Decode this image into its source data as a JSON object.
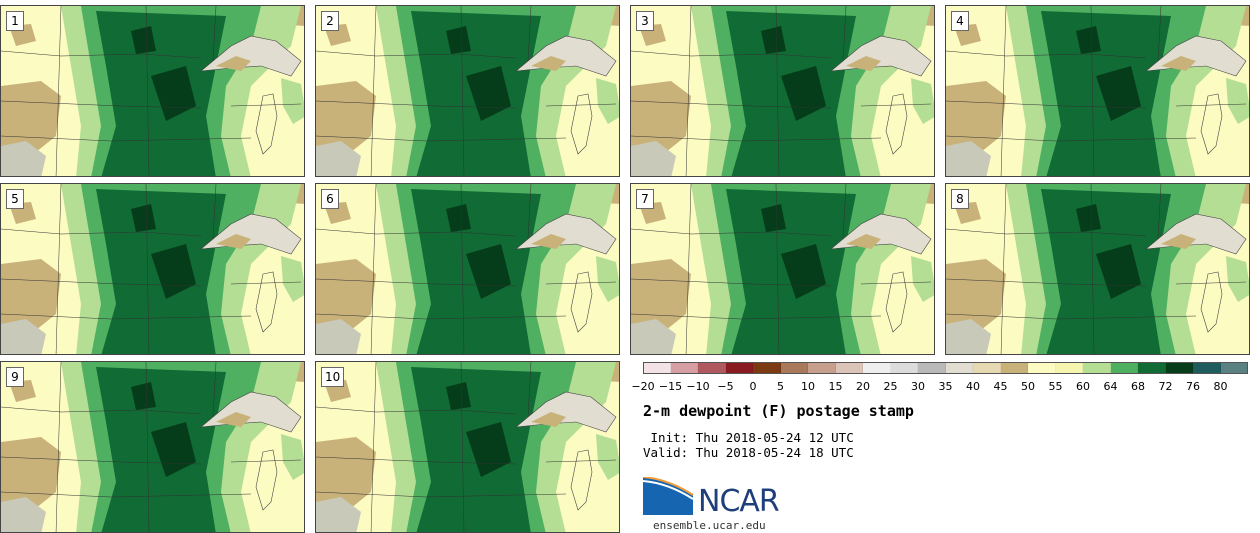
{
  "panels": [
    {
      "label": "1"
    },
    {
      "label": "2"
    },
    {
      "label": "3"
    },
    {
      "label": "4"
    },
    {
      "label": "5"
    },
    {
      "label": "6"
    },
    {
      "label": "7"
    },
    {
      "label": "8"
    },
    {
      "label": "9"
    },
    {
      "label": "10"
    }
  ],
  "colorbar": {
    "colors": [
      "#f3e2e6",
      "#d59fa4",
      "#b0585f",
      "#8a1a22",
      "#7c3a12",
      "#a8795a",
      "#c6a08c",
      "#dcc4b8",
      "#eeeeee",
      "#dcdcdc",
      "#b9b9b9",
      "#e1ddd0",
      "#e6d8b0",
      "#c8b27a",
      "#fbfbc2",
      "#f5f5b0",
      "#b3de94",
      "#4fb062",
      "#116b34",
      "#053d1a",
      "#1e5c5e",
      "#5a8282"
    ],
    "ticks": [
      "−20",
      "−15",
      "−10",
      "−5",
      "0",
      "5",
      "10",
      "15",
      "20",
      "25",
      "30",
      "35",
      "40",
      "45",
      "50",
      "55",
      "60",
      "64",
      "68",
      "72",
      "76",
      "80"
    ]
  },
  "title": "2-m dewpoint (F) postage stamp",
  "init": " Init: Thu 2018-05-24 12 UTC",
  "valid": "Valid: Thu 2018-05-24 18 UTC",
  "logo_text": "NCAR",
  "site": "ensemble.ucar.edu"
}
